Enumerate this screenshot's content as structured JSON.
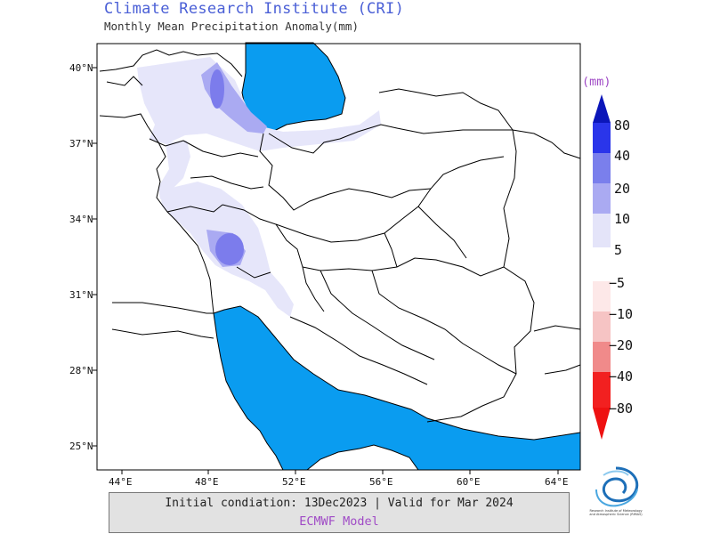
{
  "header": {
    "title": "Climate Research Institute (CRI)",
    "subtitle": "Monthly Mean Precipitation Anomaly(mm)"
  },
  "map": {
    "lat_labels": [
      "40°N",
      "37°N",
      "34°N",
      "31°N",
      "28°N",
      "25°N"
    ],
    "lon_labels": [
      "44°E",
      "48°E",
      "52°E",
      "56°E",
      "60°E",
      "64°E"
    ],
    "colors": {
      "sea": "#0a9cf0",
      "border": "#000000",
      "anomaly_5": "#e6e6fa",
      "anomaly_10": "#aaaaf2",
      "anomaly_20": "#7676ec"
    }
  },
  "colorbar": {
    "unit": "(mm)",
    "positive_labels": [
      "80",
      "40",
      "20",
      "10",
      "5"
    ],
    "negative_labels": [
      "−5",
      "−10",
      "−20",
      "−40",
      "−80"
    ],
    "positive_colors": [
      "#0b16b9",
      "#2a35ea",
      "#7a7fec",
      "#aaaaf2",
      "#e4e4f9"
    ],
    "negative_colors": [
      "#fde8e8",
      "#fbc8c8",
      "#f49a9a",
      "#ee6464",
      "#f22020",
      "#ee1111"
    ]
  },
  "footer": {
    "line1": "Initial condiation: 13Dec2023 | Valid for Mar 2024",
    "line2": "ECMWF Model"
  },
  "logo": {
    "text": "Research Institute of Meteorology and Atmospheric Science (RIMAS)"
  }
}
